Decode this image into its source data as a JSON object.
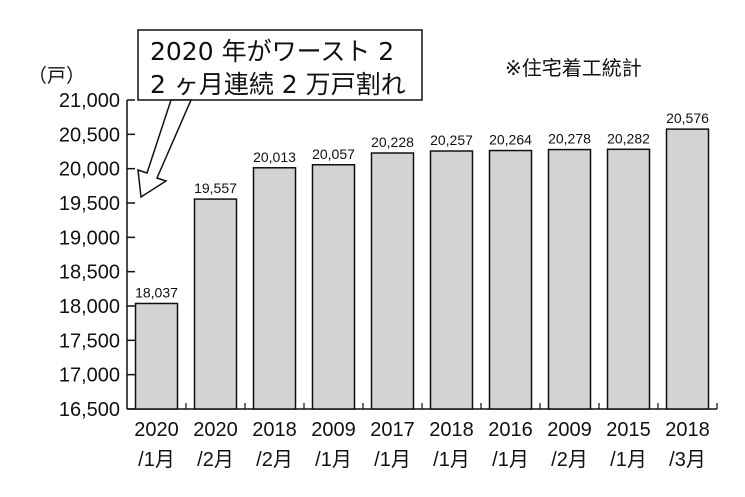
{
  "chart_data": {
    "type": "bar",
    "unit": "（戸）",
    "source_note": "※住宅着工統計",
    "annotation": [
      "2020 年がワースト 2",
      "2 ヶ月連続 2 万戸割れ"
    ],
    "categories": [
      [
        "2020",
        "/1月"
      ],
      [
        "2020",
        "/2月"
      ],
      [
        "2018",
        "/2月"
      ],
      [
        "2009",
        "/1月"
      ],
      [
        "2017",
        "/1月"
      ],
      [
        "2018",
        "/1月"
      ],
      [
        "2016",
        "/1月"
      ],
      [
        "2009",
        "/2月"
      ],
      [
        "2015",
        "/1月"
      ],
      [
        "2018",
        "/3月"
      ]
    ],
    "values": [
      18037,
      19557,
      20013,
      20057,
      20228,
      20257,
      20264,
      20278,
      20282,
      20576
    ],
    "value_labels": [
      "18,037",
      "19,557",
      "20,013",
      "20,057",
      "20,228",
      "20,257",
      "20,264",
      "20,278",
      "20,282",
      "20,576"
    ],
    "ylim": [
      16500,
      21000
    ],
    "yticks": [
      16500,
      17000,
      17500,
      18000,
      18500,
      19000,
      19500,
      20000,
      20500,
      21000
    ],
    "ytick_labels": [
      "16,500",
      "17,000",
      "17,500",
      "18,000",
      "18,500",
      "19,000",
      "19,500",
      "20,000",
      "20,500",
      "21,000"
    ],
    "bar_color": "#d3d3d3",
    "bar_edge_color": "#111111",
    "grid": false
  }
}
